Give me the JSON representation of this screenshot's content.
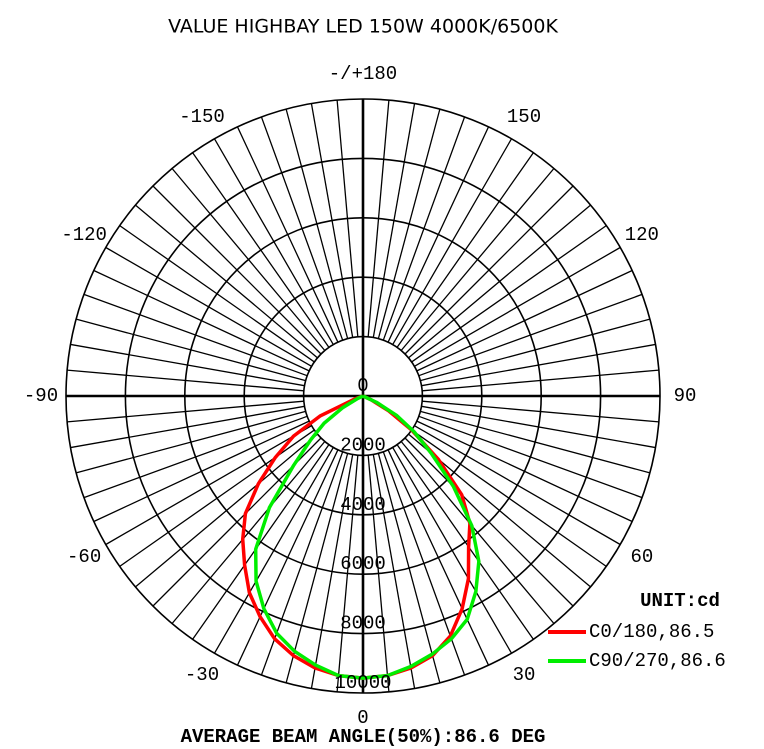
{
  "chart_data": {
    "type": "polar",
    "title": "VALUE HIGHBAY LED 150W 4000K/6500K",
    "unit_label": "UNIT:cd",
    "footer": "AVERAGE BEAM ANGLE(50%):86.6 DEG",
    "x": [
      -90,
      -85,
      -80,
      -75,
      -70,
      -65,
      -60,
      -55,
      -50,
      -45,
      -40,
      -35,
      -30,
      -25,
      -20,
      -15,
      -10,
      -5,
      0,
      5,
      10,
      15,
      20,
      25,
      30,
      35,
      40,
      45,
      50,
      55,
      60,
      65,
      70,
      75,
      80,
      85,
      90
    ],
    "series": [
      {
        "name": "C0/180,86.5",
        "color": "#ff0000",
        "values": [
          0,
          0,
          0,
          0,
          300,
          1600,
          2700,
          3600,
          4600,
          5600,
          6300,
          6950,
          7650,
          8200,
          8700,
          9050,
          9300,
          9450,
          9500,
          9450,
          9300,
          9050,
          8600,
          7900,
          7100,
          6200,
          5600,
          4700,
          3300,
          2000,
          1000,
          300,
          0,
          0,
          0,
          0,
          0
        ]
      },
      {
        "name": "C90/270,86.6",
        "color": "#00ee00",
        "values": [
          0,
          0,
          0,
          0,
          0,
          200,
          800,
          1600,
          2300,
          3300,
          4900,
          6300,
          7200,
          7900,
          8500,
          8900,
          9200,
          9450,
          9500,
          9450,
          9250,
          9000,
          8700,
          8300,
          7600,
          6800,
          5700,
          4300,
          3000,
          2100,
          1300,
          500,
          0,
          0,
          0,
          0,
          0
        ]
      }
    ],
    "rlim": [
      0,
      10000
    ],
    "rticks": [
      0,
      2000,
      4000,
      6000,
      8000,
      10000
    ],
    "xticks": [
      {
        "value": 180,
        "label": "-/+180"
      },
      -150,
      150,
      -120,
      120,
      -90,
      90,
      -60,
      60,
      -30,
      30,
      0
    ]
  }
}
